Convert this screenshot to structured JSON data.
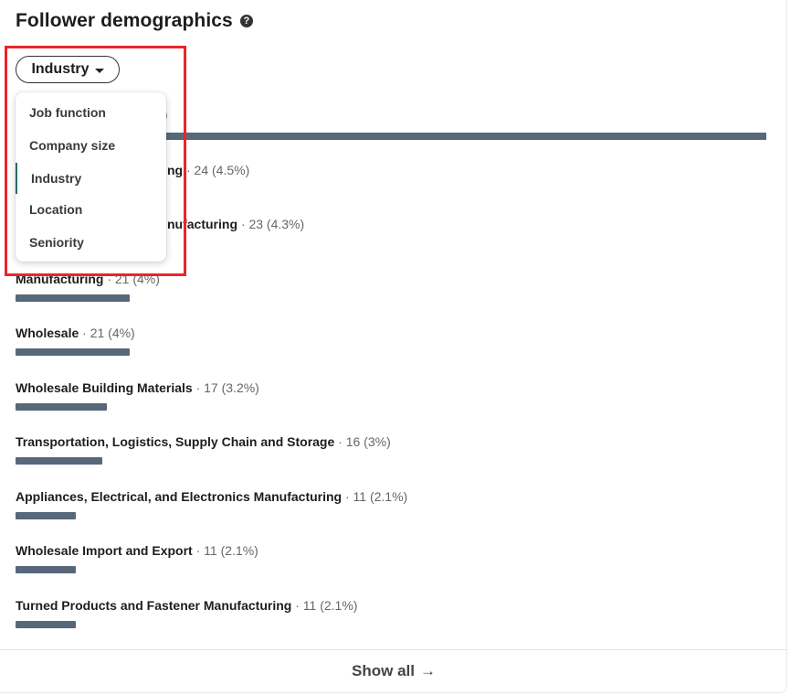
{
  "header": {
    "title": "Follower demographics",
    "help_glyph": "?"
  },
  "filter": {
    "label": "Industry"
  },
  "dropdown": {
    "items": [
      {
        "label": "Job function"
      },
      {
        "label": "Company size"
      },
      {
        "label": "Industry",
        "selected": true
      },
      {
        "label": "Location"
      },
      {
        "label": "Seniority"
      }
    ]
  },
  "partial": {
    "hidden_stats": ")",
    "row1_name": "ng",
    "row1_stats": " · 24 (4.5%)",
    "row2_name": "nufacturing",
    "row2_stats": " · 23 (4.3%)",
    "row3_name": "Manufacturing",
    "row3_stats": " · 21 (4%)"
  },
  "rows": [
    {
      "name": "Wholesale",
      "stats": " · 21 (4%)",
      "share": 0.152
    },
    {
      "name": "Wholesale Building Materials",
      "stats": " · 17 (3.2%)",
      "share": 0.122
    },
    {
      "name": "Transportation, Logistics, Supply Chain and Storage",
      "stats": " · 16 (3%)",
      "share": 0.115
    },
    {
      "name": "Appliances, Electrical, and Electronics Manufacturing",
      "stats": " · 11 (2.1%)",
      "share": 0.08
    },
    {
      "name": "Wholesale Import and Export",
      "stats": " · 11 (2.1%)",
      "share": 0.08
    },
    {
      "name": "Turned Products and Fastener Manufacturing",
      "stats": " · 11 (2.1%)",
      "share": 0.08
    }
  ],
  "footer": {
    "show_all": "Show all",
    "arrow": "→"
  },
  "colors": {
    "bar": "#56687a",
    "highlight": "#e8262b",
    "selected_marker": "#2a6b62"
  }
}
